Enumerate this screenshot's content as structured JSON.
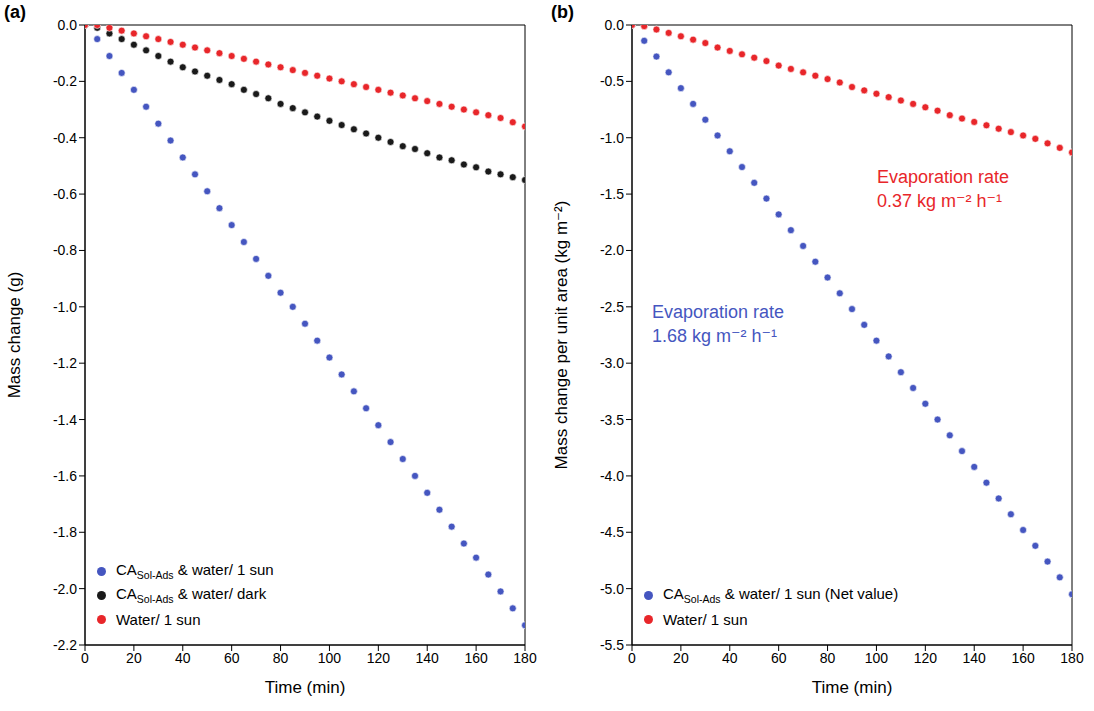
{
  "chart_data": [
    {
      "type": "scatter",
      "label": "(a)",
      "x_label": "Time (min)",
      "y_label": "Mass change (g)",
      "x": [
        0,
        5,
        10,
        15,
        20,
        25,
        30,
        35,
        40,
        45,
        50,
        55,
        60,
        65,
        70,
        75,
        80,
        85,
        90,
        95,
        100,
        105,
        110,
        115,
        120,
        125,
        130,
        135,
        140,
        145,
        150,
        155,
        160,
        165,
        170,
        175,
        180
      ],
      "xlim": [
        0,
        180
      ],
      "xticks": [
        0,
        20,
        40,
        60,
        80,
        100,
        120,
        140,
        160,
        180
      ],
      "ylim": [
        -2.2,
        0
      ],
      "yticks": [
        {
          "value": 0,
          "label": "0.0"
        },
        -0.2,
        -0.4,
        -0.6,
        -0.8,
        {
          "value": -1,
          "label": "-1.0"
        },
        -1.2,
        -1.4,
        -1.6,
        -1.8,
        {
          "value": -2,
          "label": "-2.0"
        },
        -2.2
      ],
      "legend": "lower left",
      "marker": "circle",
      "series": [
        {
          "name": "CASol-Ads & water/ 1 sun",
          "color": "#4556c0",
          "values": [
            0,
            -0.05,
            -0.11,
            -0.17,
            -0.23,
            -0.29,
            -0.35,
            -0.41,
            -0.47,
            -0.53,
            -0.59,
            -0.65,
            -0.71,
            -0.77,
            -0.83,
            -0.89,
            -0.95,
            -1.0,
            -1.06,
            -1.12,
            -1.18,
            -1.24,
            -1.3,
            -1.36,
            -1.42,
            -1.48,
            -1.54,
            -1.6,
            -1.66,
            -1.72,
            -1.78,
            -1.84,
            -1.89,
            -1.95,
            -2.01,
            -2.07,
            -2.13
          ]
        },
        {
          "name": "CASol-Ads & water/ dark",
          "color": "#1a1a1a",
          "values": [
            0,
            -0.01,
            -0.03,
            -0.05,
            -0.07,
            -0.09,
            -0.11,
            -0.13,
            -0.15,
            -0.165,
            -0.18,
            -0.195,
            -0.21,
            -0.23,
            -0.245,
            -0.26,
            -0.28,
            -0.295,
            -0.31,
            -0.325,
            -0.34,
            -0.355,
            -0.37,
            -0.385,
            -0.4,
            -0.415,
            -0.43,
            -0.44,
            -0.455,
            -0.47,
            -0.48,
            -0.495,
            -0.505,
            -0.52,
            -0.53,
            -0.54,
            -0.55
          ]
        },
        {
          "name": "Water/ 1 sun",
          "color": "#e8262a",
          "values": [
            0,
            0,
            -0.01,
            -0.02,
            -0.03,
            -0.04,
            -0.05,
            -0.06,
            -0.07,
            -0.08,
            -0.09,
            -0.1,
            -0.11,
            -0.12,
            -0.13,
            -0.14,
            -0.15,
            -0.16,
            -0.17,
            -0.18,
            -0.19,
            -0.2,
            -0.21,
            -0.22,
            -0.23,
            -0.24,
            -0.25,
            -0.26,
            -0.27,
            -0.28,
            -0.29,
            -0.3,
            -0.31,
            -0.32,
            -0.33,
            -0.345,
            -0.36
          ]
        }
      ]
    },
    {
      "type": "scatter",
      "label": "(b)",
      "x_label": "Time (min)",
      "y_label": "Mass change per unit area (kg m⁻²)",
      "x": [
        0,
        5,
        10,
        15,
        20,
        25,
        30,
        35,
        40,
        45,
        50,
        55,
        60,
        65,
        70,
        75,
        80,
        85,
        90,
        95,
        100,
        105,
        110,
        115,
        120,
        125,
        130,
        135,
        140,
        145,
        150,
        155,
        160,
        165,
        170,
        175,
        180
      ],
      "xlim": [
        0,
        180
      ],
      "xticks": [
        0,
        20,
        40,
        60,
        80,
        100,
        120,
        140,
        160,
        180
      ],
      "ylim": [
        -5.5,
        0
      ],
      "yticks": [
        {
          "value": 0,
          "label": "0.0"
        },
        -0.5,
        {
          "value": -1,
          "label": "-1.0"
        },
        -1.5,
        {
          "value": -2,
          "label": "-2.0"
        },
        -2.5,
        {
          "value": -3,
          "label": "-3.0"
        },
        -3.5,
        {
          "value": -4,
          "label": "-4.0"
        },
        -4.5,
        {
          "value": -5,
          "label": "-5.0"
        },
        -5.5
      ],
      "legend": "lower left",
      "marker": "circle",
      "series": [
        {
          "name": "CASol-Ads & water/ 1 sun (Net value)",
          "color": "#4556c0",
          "values": [
            0,
            -0.14,
            -0.28,
            -0.42,
            -0.56,
            -0.7,
            -0.84,
            -0.98,
            -1.12,
            -1.26,
            -1.4,
            -1.54,
            -1.68,
            -1.82,
            -1.96,
            -2.1,
            -2.24,
            -2.38,
            -2.52,
            -2.66,
            -2.8,
            -2.94,
            -3.08,
            -3.22,
            -3.36,
            -3.5,
            -3.64,
            -3.78,
            -3.92,
            -4.06,
            -4.2,
            -4.34,
            -4.48,
            -4.62,
            -4.76,
            -4.9,
            -5.05
          ]
        },
        {
          "name": "Water/ 1 sun",
          "color": "#e8262a",
          "values": [
            0,
            -0.01,
            -0.04,
            -0.07,
            -0.1,
            -0.13,
            -0.16,
            -0.2,
            -0.23,
            -0.26,
            -0.29,
            -0.32,
            -0.36,
            -0.39,
            -0.42,
            -0.45,
            -0.48,
            -0.51,
            -0.55,
            -0.58,
            -0.61,
            -0.64,
            -0.67,
            -0.7,
            -0.73,
            -0.76,
            -0.8,
            -0.83,
            -0.86,
            -0.89,
            -0.92,
            -0.95,
            -0.98,
            -1.01,
            -1.05,
            -1.09,
            -1.13
          ]
        }
      ],
      "annotations": [
        {
          "lines": [
            "Evaporation rate",
            "0.37 kg m⁻² h⁻¹"
          ],
          "color": "#e8262a"
        },
        {
          "lines": [
            "Evaporation rate",
            "1.68 kg m⁻² h⁻¹"
          ],
          "color": "#4556c0"
        }
      ]
    }
  ]
}
